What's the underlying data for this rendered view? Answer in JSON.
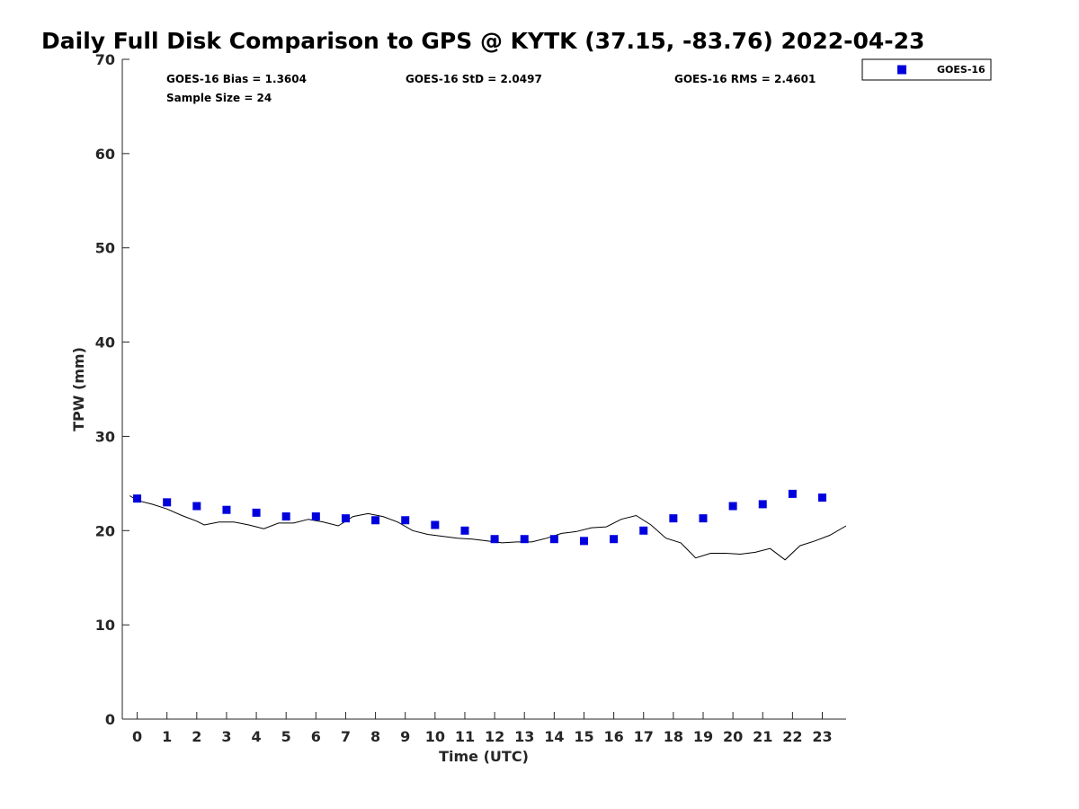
{
  "chart_data": {
    "type": "scatter",
    "title": "Daily Full Disk Comparison to GPS @ KYTK (37.15, -83.76) 2022-04-23",
    "xlabel": "Time (UTC)",
    "ylabel": "TPW (mm)",
    "xlim": [
      -0.5,
      23.8
    ],
    "ylim": [
      0,
      70
    ],
    "x_ticks": [
      "0",
      "1",
      "2",
      "3",
      "4",
      "5",
      "6",
      "7",
      "8",
      "9",
      "10",
      "11",
      "12",
      "13",
      "14",
      "15",
      "16",
      "17",
      "18",
      "19",
      "20",
      "21",
      "22",
      "23"
    ],
    "y_ticks": [
      "0",
      "10",
      "20",
      "30",
      "40",
      "50",
      "60",
      "70"
    ],
    "grid": false,
    "legend_position": "top-right",
    "series": [
      {
        "name": "GOES-16",
        "kind": "scatter",
        "marker": "square",
        "color": "#0000dd",
        "x": [
          0,
          1,
          2,
          3,
          4,
          5,
          6,
          7,
          8,
          9,
          10,
          11,
          12,
          13,
          14,
          15,
          16,
          17,
          18,
          19,
          20,
          21,
          22,
          23
        ],
        "y": [
          23.4,
          23.0,
          22.6,
          22.2,
          21.9,
          21.5,
          21.5,
          21.3,
          21.1,
          21.1,
          20.6,
          20.0,
          19.1,
          19.1,
          19.1,
          18.9,
          19.1,
          20.0,
          21.3,
          21.3,
          22.6,
          22.8,
          23.9,
          23.5
        ]
      },
      {
        "kind": "line",
        "color": "#000000",
        "x": [
          -0.25,
          0,
          0.5,
          1,
          1.5,
          2,
          2.25,
          2.75,
          3.25,
          3.75,
          4.25,
          4.75,
          5.25,
          5.75,
          6.25,
          6.75,
          7.25,
          7.75,
          8.25,
          8.75,
          9.25,
          9.75,
          10.25,
          10.75,
          11.25,
          11.75,
          12.25,
          12.75,
          13.25,
          13.75,
          14.25,
          14.75,
          15.25,
          15.75,
          16.25,
          16.75,
          17.25,
          17.75,
          18.25,
          18.75,
          19.25,
          19.75,
          20.25,
          20.75,
          21.25,
          21.75,
          22.25,
          22.75,
          23.25,
          23.8
        ],
        "y": [
          23.7,
          23.2,
          22.8,
          22.3,
          21.6,
          21.0,
          20.6,
          20.9,
          20.9,
          20.6,
          20.2,
          20.8,
          20.8,
          21.2,
          20.9,
          20.5,
          21.5,
          21.8,
          21.5,
          20.9,
          20.0,
          19.6,
          19.4,
          19.2,
          19.1,
          18.9,
          18.7,
          18.8,
          18.8,
          19.2,
          19.7,
          19.9,
          20.3,
          20.4,
          21.2,
          21.6,
          20.6,
          19.2,
          18.7,
          17.1,
          17.6,
          17.6,
          17.5,
          17.7,
          18.1,
          16.9,
          18.4,
          18.9,
          19.5,
          20.5
        ]
      }
    ],
    "annotations": {
      "bias": "GOES-16 Bias = 1.3604",
      "std": "GOES-16 StD = 2.0497",
      "rms": "GOES-16 RMS = 2.4601",
      "sample": "Sample Size = 24"
    }
  }
}
